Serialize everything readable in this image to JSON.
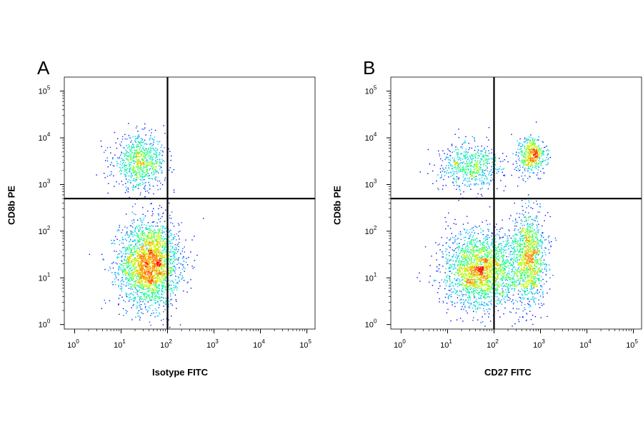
{
  "chart_data": [
    {
      "type": "scatter",
      "panel_label": "A",
      "xlabel": "Isotype FITC",
      "ylabel": "CD8b PE",
      "x_scale": "log",
      "y_scale": "log",
      "xlim": [
        0.6,
        150000
      ],
      "ylim": [
        0.8,
        200000
      ],
      "x_ticks": [
        "10^0",
        "10^1",
        "10^2",
        "10^3",
        "10^4",
        "10^5"
      ],
      "y_ticks": [
        "10^0",
        "10^1",
        "10^2",
        "10^3",
        "10^4",
        "10^5"
      ],
      "gate_x": 100,
      "gate_y": 500,
      "colormap": [
        "#00008b",
        "#0000ff",
        "#00c8ff",
        "#00ff80",
        "#c8ff00",
        "#ffa000",
        "#ff0000"
      ],
      "clusters": [
        {
          "x": 40,
          "y": 20,
          "spread_x": 0.32,
          "spread_y": 0.45,
          "n": 2600
        },
        {
          "x": 25,
          "y": 3000,
          "spread_x": 0.28,
          "spread_y": 0.28,
          "n": 800
        }
      ]
    },
    {
      "type": "scatter",
      "panel_label": "B",
      "xlabel": "CD27 FITC",
      "ylabel": "CD8b PE",
      "x_scale": "log",
      "y_scale": "log",
      "xlim": [
        0.6,
        150000
      ],
      "ylim": [
        0.8,
        200000
      ],
      "x_ticks": [
        "10^0",
        "10^1",
        "10^2",
        "10^3",
        "10^4",
        "10^5"
      ],
      "y_ticks": [
        "10^0",
        "10^1",
        "10^2",
        "10^3",
        "10^4",
        "10^5"
      ],
      "gate_x": 100,
      "gate_y": 500,
      "colormap": [
        "#00008b",
        "#0000ff",
        "#00c8ff",
        "#00ff80",
        "#c8ff00",
        "#ffa000",
        "#ff0000"
      ],
      "clusters": [
        {
          "x": 50,
          "y": 15,
          "spread_x": 0.38,
          "spread_y": 0.4,
          "n": 2200
        },
        {
          "x": 550,
          "y": 25,
          "spread_x": 0.18,
          "spread_y": 0.5,
          "n": 1200
        },
        {
          "x": 30,
          "y": 2500,
          "spread_x": 0.35,
          "spread_y": 0.25,
          "n": 600
        },
        {
          "x": 650,
          "y": 4500,
          "spread_x": 0.15,
          "spread_y": 0.2,
          "n": 500
        }
      ]
    }
  ]
}
